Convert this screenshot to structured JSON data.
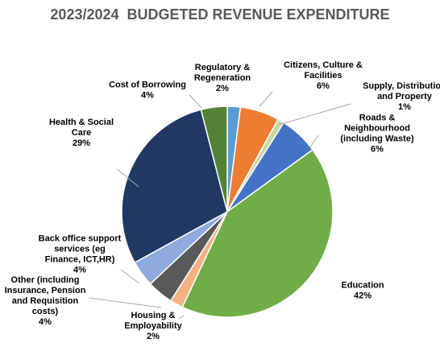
{
  "chart_data": {
    "type": "pie",
    "title": "2023/2024  BUDGETED REVENUE EXPENDITURE",
    "slices": [
      {
        "label": [
          "Regulatory &",
          "Regeneration"
        ],
        "value": 2,
        "value_label": "2%",
        "color": "#5B9BD5"
      },
      {
        "label": [
          "Citizens, Culture &",
          "Facilities"
        ],
        "value": 6,
        "value_label": "6%",
        "color": "#ED7D31"
      },
      {
        "label": [
          "Supply, Distribution",
          "and Property"
        ],
        "value": 1,
        "value_label": "1%",
        "color": "#C9D7A3"
      },
      {
        "label": [
          "Roads &",
          "Neighbourhood",
          "(including Waste)"
        ],
        "value": 6,
        "value_label": "6%",
        "color": "#4472C4"
      },
      {
        "label": [
          "Education"
        ],
        "value": 42,
        "value_label": "42%",
        "color": "#70AD47"
      },
      {
        "label": [
          "Housing &",
          "Employability"
        ],
        "value": 2,
        "value_label": "2%",
        "color": "#F4B183"
      },
      {
        "label": [
          "Other (including",
          "Insurance, Pension",
          "and Requisition",
          "costs)"
        ],
        "value": 4,
        "value_label": "4%",
        "color": "#595959"
      },
      {
        "label": [
          "Back office support",
          "services (eg",
          "Finance, ICT,HR)"
        ],
        "value": 4,
        "value_label": "4%",
        "color": "#8FAADC"
      },
      {
        "label": [
          "Health & Social",
          "Care"
        ],
        "value": 29,
        "value_label": "29%",
        "color": "#203864"
      },
      {
        "label": [
          "Cost of Borrowing"
        ],
        "value": 4,
        "value_label": "4%",
        "color": "#548235"
      }
    ]
  }
}
